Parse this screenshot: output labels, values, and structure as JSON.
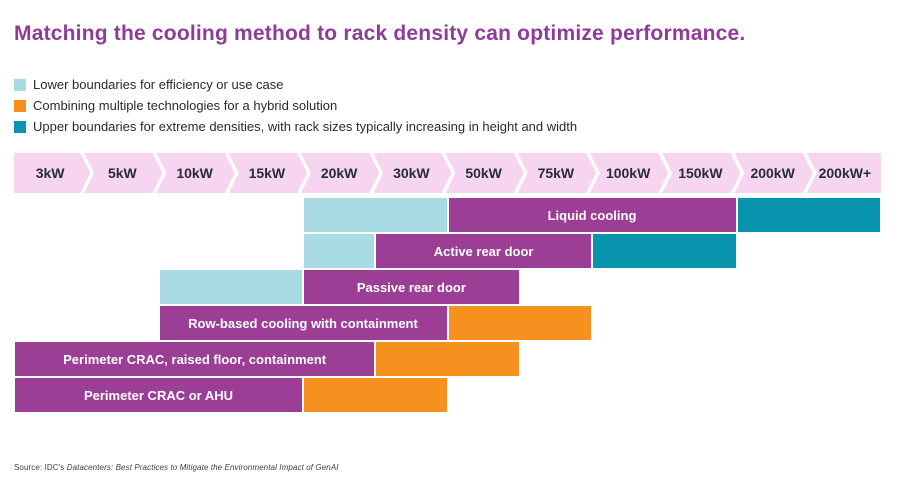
{
  "title": {
    "text": "Matching the cooling method to rack density can optimize performance."
  },
  "colors": {
    "title": "#8e3c98",
    "scale_band": "#f7d4f0",
    "scale_text": "#272d3a",
    "lower": "#a9dbe4",
    "primary": "#9c3d96",
    "upper": "#0994ae",
    "hybrid": "#f6911f",
    "bar_label": "#ffffff",
    "legend_text": "#242b37",
    "source_text": "#3a4150"
  },
  "legend": {
    "items": [
      {
        "key": "lower",
        "label": "Lower boundaries for efficiency or use case"
      },
      {
        "key": "hybrid",
        "label": "Combining multiple technologies for a hybrid solution"
      },
      {
        "key": "upper",
        "label": "Upper boundaries for extreme densities, with rack sizes typically increasing in height and width"
      }
    ]
  },
  "scale": {
    "labels": [
      "3kW",
      "5kW",
      "10kW",
      "15kW",
      "20kW",
      "30kW",
      "50kW",
      "75kW",
      "100kW",
      "150kW",
      "200kW",
      "200kW+"
    ]
  },
  "chart_data": {
    "type": "bar",
    "subtype": "range-bars-by-density",
    "title": "Matching the cooling method to rack density can optimize performance.",
    "categories": [
      "3kW",
      "5kW",
      "10kW",
      "15kW",
      "20kW",
      "30kW",
      "50kW",
      "75kW",
      "100kW",
      "150kW",
      "200kW",
      "200kW+"
    ],
    "legend_position": "top-left",
    "rows": [
      {
        "label": "Liquid cooling",
        "segments": [
          {
            "kind": "lower",
            "from": "20kW",
            "to": "50kW",
            "from_col": 4,
            "to_col": 6
          },
          {
            "kind": "primary",
            "from": "50kW",
            "to": "200kW",
            "from_col": 6,
            "to_col": 10,
            "show_label": true
          },
          {
            "kind": "upper",
            "from": "200kW",
            "to": "200kW+",
            "from_col": 10,
            "to_col": 12
          }
        ]
      },
      {
        "label": "Active rear door",
        "segments": [
          {
            "kind": "lower",
            "from": "20kW",
            "to": "30kW",
            "from_col": 4,
            "to_col": 5
          },
          {
            "kind": "primary",
            "from": "30kW",
            "to": "100kW",
            "from_col": 5,
            "to_col": 8,
            "show_label": true
          },
          {
            "kind": "upper",
            "from": "100kW",
            "to": "200kW",
            "from_col": 8,
            "to_col": 10
          }
        ]
      },
      {
        "label": "Passive rear door",
        "segments": [
          {
            "kind": "lower",
            "from": "10kW",
            "to": "20kW",
            "from_col": 2,
            "to_col": 4
          },
          {
            "kind": "primary",
            "from": "20kW",
            "to": "75kW",
            "from_col": 4,
            "to_col": 7,
            "show_label": true
          }
        ]
      },
      {
        "label": "Row-based cooling with containment",
        "segments": [
          {
            "kind": "primary",
            "from": "10kW",
            "to": "50kW",
            "from_col": 2,
            "to_col": 6,
            "show_label": true
          },
          {
            "kind": "hybrid",
            "from": "50kW",
            "to": "100kW",
            "from_col": 6,
            "to_col": 8
          }
        ]
      },
      {
        "label": "Perimeter CRAC, raised floor, containment",
        "segments": [
          {
            "kind": "primary",
            "from": "3kW",
            "to": "30kW",
            "from_col": 0,
            "to_col": 5,
            "show_label": true
          },
          {
            "kind": "hybrid",
            "from": "30kW",
            "to": "75kW",
            "from_col": 5,
            "to_col": 7
          }
        ]
      },
      {
        "label": "Perimeter CRAC or AHU",
        "segments": [
          {
            "kind": "primary",
            "from": "3kW",
            "to": "20kW",
            "from_col": 0,
            "to_col": 4,
            "show_label": true
          },
          {
            "kind": "hybrid",
            "from": "20kW",
            "to": "50kW",
            "from_col": 4,
            "to_col": 6
          }
        ]
      }
    ]
  },
  "source": {
    "prefix": "Source: IDC's ",
    "italic": "Datacenters: Best Practices to Mitigate the Environmental Impact of GenAI"
  }
}
